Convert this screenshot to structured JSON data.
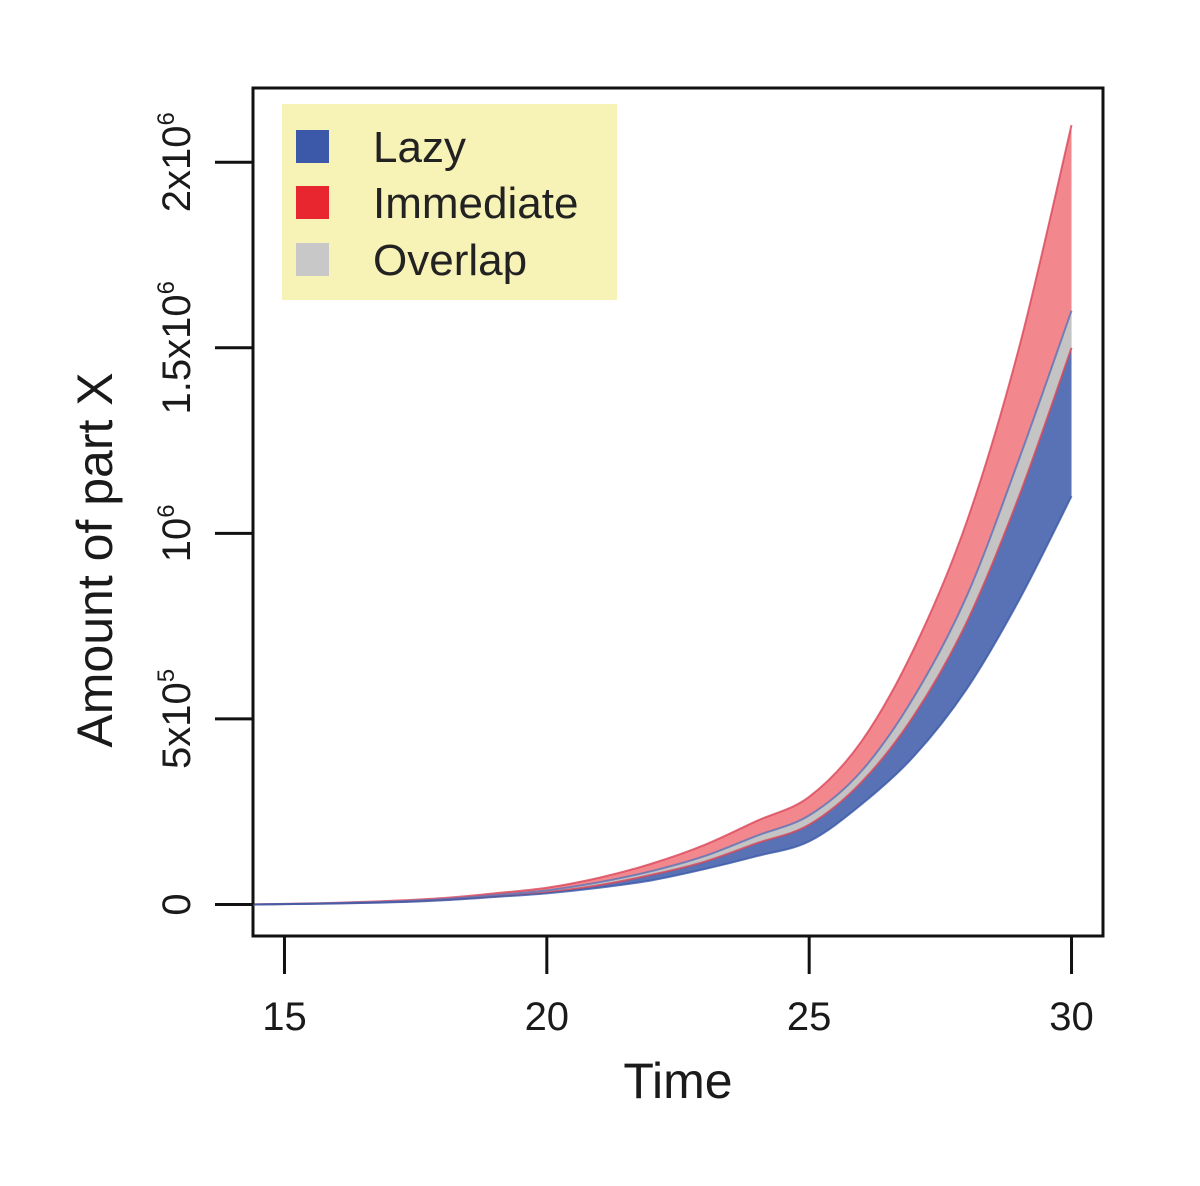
{
  "chart_data": {
    "type": "area",
    "title": "",
    "xlabel": "Time",
    "ylabel": "Amount of part X",
    "xlim": [
      14.4,
      30.6
    ],
    "ylim": [
      -85000,
      2200000
    ],
    "x_ticks": [
      15,
      20,
      25,
      30
    ],
    "x_tick_labels": [
      "15",
      "20",
      "25",
      "30"
    ],
    "y_ticks": [
      0,
      500000,
      1000000,
      1500000,
      2000000
    ],
    "y_tick_labels": [
      {
        "base": "0",
        "sup": ""
      },
      {
        "base": "5x10",
        "sup": "5"
      },
      {
        "base": "10",
        "sup": "6"
      },
      {
        "base": "1.5x10",
        "sup": "6"
      },
      {
        "base": "2x10",
        "sup": "6"
      }
    ],
    "legend": {
      "position": "top-left",
      "items": [
        {
          "label": "Lazy",
          "color": "#3b59a8"
        },
        {
          "label": "Immediate",
          "color": "#e8262f"
        },
        {
          "label": "Overlap",
          "color": "#c8c8c8"
        }
      ]
    },
    "series": [
      {
        "name": "Lazy",
        "x": [
          14.4,
          15,
          16,
          17,
          18,
          19,
          20,
          21,
          22,
          23,
          24,
          25,
          26,
          27,
          28,
          29,
          30
        ],
        "lower": [
          0,
          800,
          2500,
          5500,
          11000,
          20000,
          30000,
          45000,
          65000,
          95000,
          130000,
          170000,
          270000,
          400000,
          580000,
          820000,
          1100000
        ],
        "upper": [
          0,
          1200,
          3500,
          7500,
          14000,
          25000,
          38000,
          60000,
          90000,
          130000,
          185000,
          240000,
          360000,
          560000,
          830000,
          1200000,
          1600000
        ]
      },
      {
        "name": "Immediate",
        "x": [
          14.4,
          15,
          16,
          17,
          18,
          19,
          20,
          21,
          22,
          23,
          24,
          25,
          26,
          27,
          28,
          29,
          30
        ],
        "lower": [
          0,
          1000,
          3000,
          6500,
          12500,
          22000,
          33000,
          52000,
          80000,
          115000,
          165000,
          215000,
          330000,
          510000,
          760000,
          1100000,
          1500000
        ],
        "upper": [
          0,
          1500,
          4500,
          9500,
          17000,
          30000,
          45000,
          72000,
          110000,
          160000,
          225000,
          290000,
          440000,
          690000,
          1030000,
          1500000,
          2100000
        ]
      }
    ]
  }
}
